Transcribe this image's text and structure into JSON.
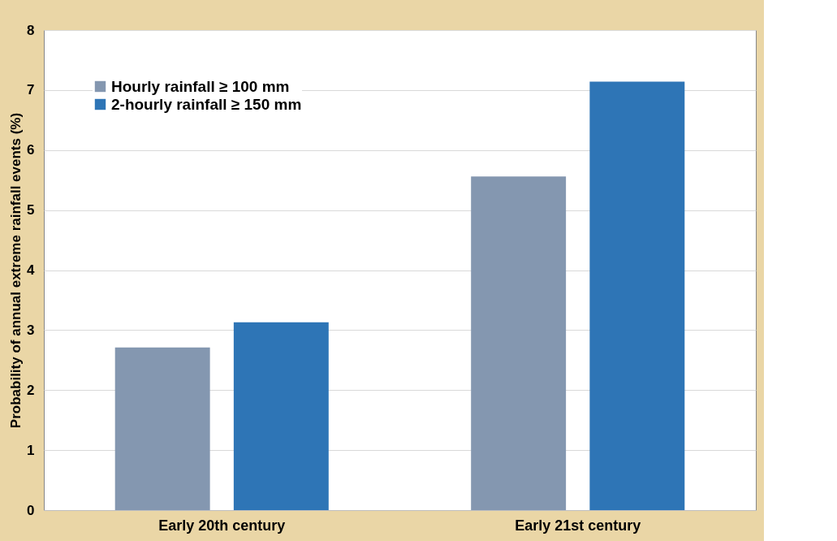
{
  "chart_data": {
    "type": "bar",
    "ylabel": "Probability of annual extreme rainfall events (%)",
    "categories": [
      "Early 20th century",
      "Early 21st century"
    ],
    "series": [
      {
        "name": "Hourly rainfall ≥ 100 mm",
        "color": "#8497b0",
        "values": [
          2.71,
          5.56
        ]
      },
      {
        "name": "2-hourly rainfall ≥ 150 mm",
        "color": "#2e75b6",
        "values": [
          3.13,
          7.14
        ]
      }
    ],
    "ylim": [
      0,
      8
    ],
    "yticks": [
      0,
      1,
      2,
      3,
      4,
      5,
      6,
      7,
      8
    ],
    "grid": "y",
    "legend": "top left"
  }
}
